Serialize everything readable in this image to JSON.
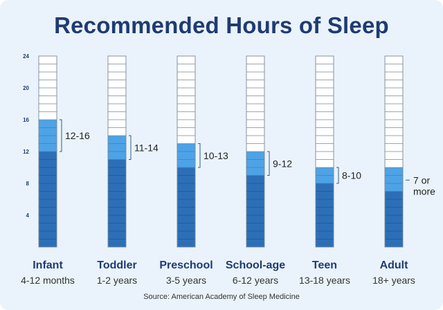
{
  "page": {
    "title": "Recommended Hours of Sleep",
    "source": "Source: American Academy of Sleep Medicine"
  },
  "colors": {
    "title": "#1f3b73",
    "background": "#eaf3fb",
    "empty_cell": "#ffffff",
    "minimum_fill": "#2c6fb7",
    "range_fill": "#4da3e6",
    "grid_line": "#7a8896"
  },
  "chart_data": {
    "type": "bar",
    "title": "Recommended Hours of Sleep",
    "ylim": [
      0,
      24
    ],
    "yticks": [
      "4",
      "8",
      "12",
      "16",
      "20",
      "24"
    ],
    "categories": [
      "Infant",
      "Toddler",
      "Preschool",
      "School-age",
      "Teen",
      "Adult"
    ],
    "subtitles": [
      "4-12 months",
      "1-2 years",
      "3-5 years",
      "6-12 years",
      "13-18 years",
      "18+ years"
    ],
    "range_labels": [
      "12-16",
      "11-14",
      "10-13",
      "9-12",
      "8-10",
      "7 or more"
    ],
    "series": [
      {
        "name": "minimum",
        "values": [
          12,
          11,
          10,
          9,
          8,
          7
        ]
      },
      {
        "name": "maximum",
        "values": [
          16,
          14,
          13,
          12,
          10,
          10
        ]
      }
    ],
    "grid": false,
    "legend": "none"
  }
}
